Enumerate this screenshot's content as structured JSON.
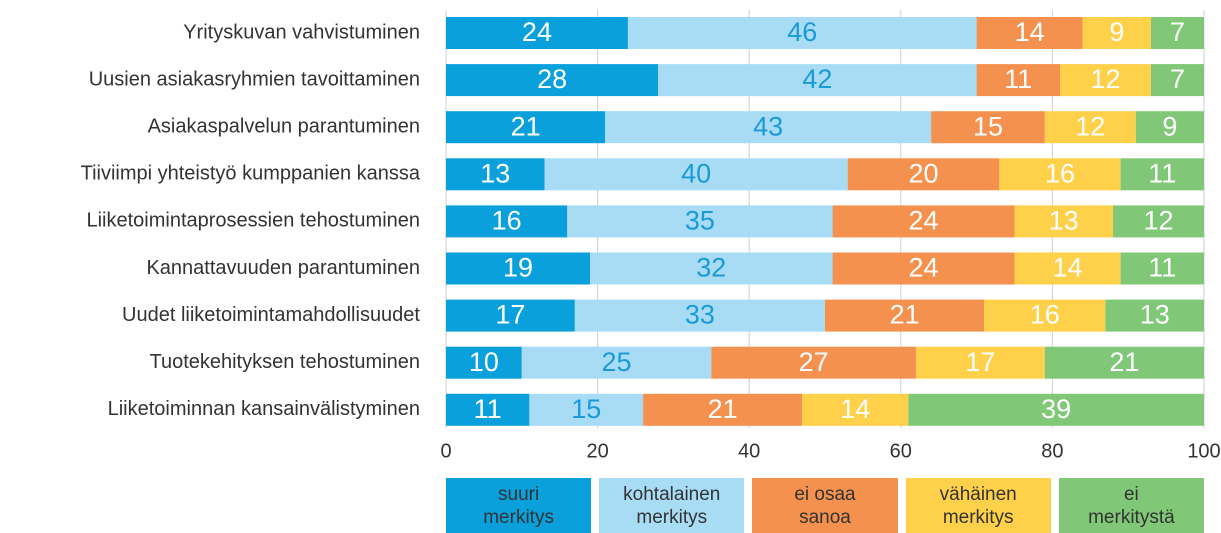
{
  "chart_data": {
    "type": "stacked_barh",
    "categories": [
      "Yrityskuvan vahvistuminen",
      "Uusien asiakasryhmien tavoittaminen",
      "Asiakaspalvelun parantuminen",
      "Tiiviimpi yhteistyö kumppanien kanssa",
      "Liiketoimintaprosessien tehostuminen",
      "Kannattavuuden parantuminen",
      "Uudet liiketoimintamahdollisuudet",
      "Tuotekehityksen tehostuminen",
      "Liiketoiminnan kansainvälistyminen"
    ],
    "series": [
      {
        "name": "suuri merkitys",
        "color": "#0aa0dc",
        "label_color": "#ffffff",
        "values": [
          24,
          28,
          21,
          13,
          16,
          19,
          17,
          10,
          11
        ]
      },
      {
        "name": "kohtalainen merkitys",
        "color": "#a8dcf5",
        "label_color": "#1a9ad6",
        "values": [
          46,
          42,
          43,
          40,
          35,
          32,
          33,
          25,
          15
        ]
      },
      {
        "name": "ei osaa sanoa",
        "color": "#f5914f",
        "label_color": "#ffffff",
        "values": [
          14,
          11,
          15,
          20,
          24,
          24,
          21,
          27,
          21
        ]
      },
      {
        "name": "vähäinen merkitys",
        "color": "#ffd04a",
        "label_color": "#ffffff",
        "values": [
          9,
          12,
          12,
          16,
          13,
          14,
          16,
          17,
          14
        ]
      },
      {
        "name": "ei merkitystä",
        "color": "#80c878",
        "label_color": "#ffffff",
        "values": [
          7,
          7,
          9,
          11,
          12,
          11,
          13,
          21,
          39
        ]
      }
    ],
    "xlim": [
      0,
      100
    ],
    "xticks": [
      0,
      20,
      40,
      60,
      80,
      100
    ],
    "grid": true
  }
}
